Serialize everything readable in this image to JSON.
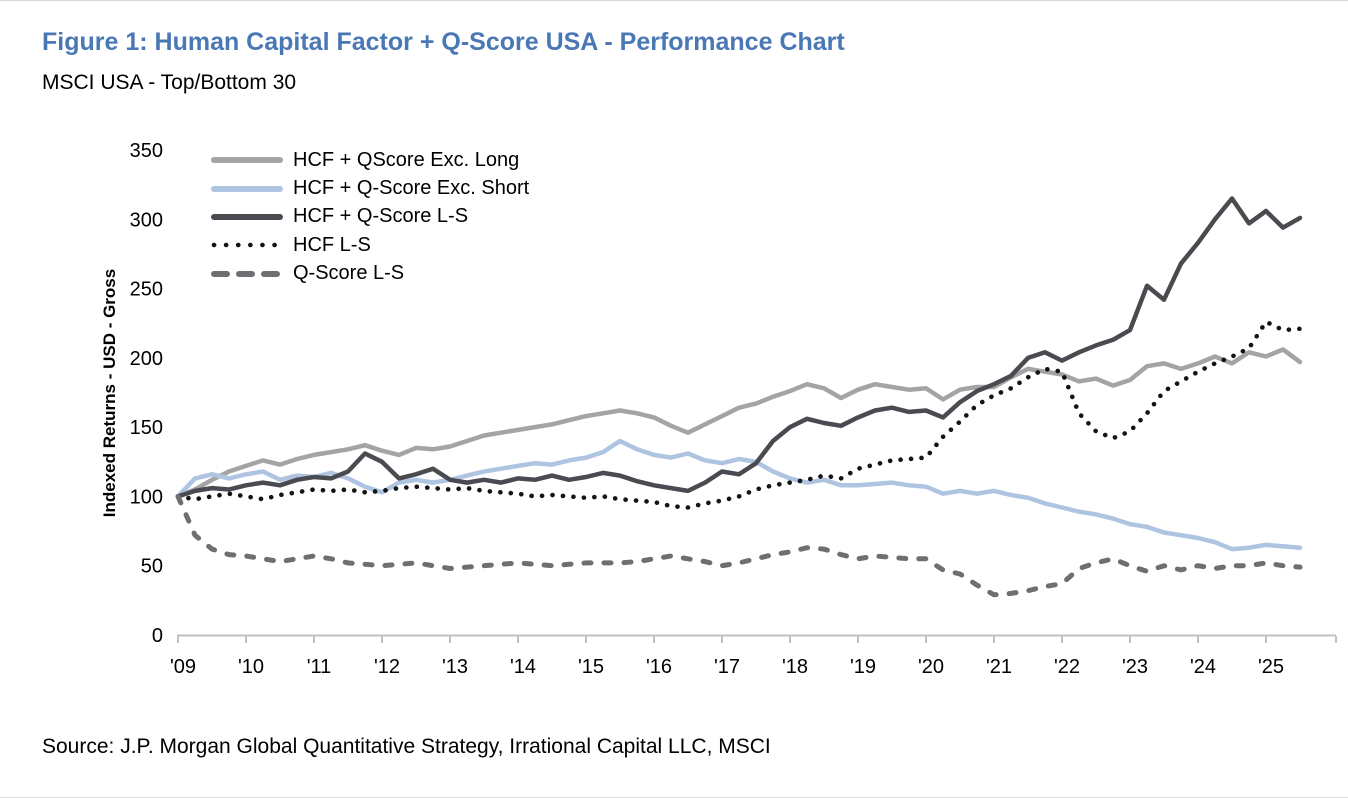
{
  "header": {
    "title": "Figure 1: Human Capital Factor + Q-Score USA - Performance Chart",
    "subtitle": "MSCI USA - Top/Bottom 30"
  },
  "footer": {
    "source": "Source: J.P. Morgan Global Quantitative Strategy, Irrational Capital LLC, MSCI"
  },
  "colors": {
    "title_blue": "#4a78b5",
    "axis_gray": "#c0c0c0"
  },
  "chart_data": {
    "type": "line",
    "title": "Figure 1: Human Capital Factor + Q-Score USA - Performance Chart",
    "subtitle": "MSCI USA - Top/Bottom 30",
    "xlabel": "",
    "ylabel": "Indexed Returns - USD - Gross",
    "ylim": [
      0,
      350
    ],
    "y_ticks": [
      0,
      50,
      100,
      150,
      200,
      250,
      300,
      350
    ],
    "x_start": 2009,
    "x_step": 0.25,
    "x_tick_labels": [
      "'09",
      "'10",
      "'11",
      "'12",
      "'13",
      "'14",
      "'15",
      "'16",
      "'17",
      "'18",
      "'19",
      "'20",
      "'21",
      "'22",
      "'23",
      "'24",
      "'25"
    ],
    "grid": false,
    "legend_position": "top-left-inside",
    "axis_color": "#c0c0c0",
    "series": [
      {
        "name": "HCF + QScore Exc. Long",
        "color": "#a4a4a4",
        "style": "solid",
        "values": [
          100,
          105,
          112,
          118,
          122,
          126,
          123,
          127,
          130,
          132,
          134,
          137,
          133,
          130,
          135,
          134,
          136,
          140,
          144,
          146,
          148,
          150,
          152,
          155,
          158,
          160,
          162,
          160,
          157,
          151,
          146,
          152,
          158,
          164,
          167,
          172,
          176,
          181,
          178,
          171,
          177,
          181,
          179,
          177,
          178,
          170,
          177,
          179,
          179,
          186,
          192,
          190,
          188,
          183,
          185,
          180,
          184,
          194,
          196,
          192,
          196,
          201,
          196,
          204,
          201,
          206,
          197
        ]
      },
      {
        "name": "HCF + Q-Score Exc. Short",
        "color": "#aec4e1",
        "style": "solid",
        "values": [
          100,
          113,
          116,
          113,
          116,
          118,
          112,
          115,
          114,
          117,
          113,
          107,
          103,
          110,
          112,
          110,
          112,
          115,
          118,
          120,
          122,
          124,
          123,
          126,
          128,
          132,
          140,
          134,
          130,
          128,
          131,
          126,
          124,
          127,
          125,
          118,
          113,
          110,
          112,
          108,
          108,
          109,
          110,
          108,
          107,
          102,
          104,
          102,
          104,
          101,
          99,
          95,
          92,
          89,
          87,
          84,
          80,
          78,
          74,
          72,
          70,
          67,
          62,
          63,
          65,
          64,
          63
        ]
      },
      {
        "name": "HCF + Q-Score L-S",
        "color": "#4a4b50",
        "style": "solid",
        "values": [
          100,
          104,
          106,
          105,
          108,
          110,
          108,
          112,
          114,
          113,
          118,
          131,
          125,
          113,
          116,
          120,
          112,
          110,
          112,
          110,
          113,
          112,
          115,
          112,
          114,
          117,
          115,
          111,
          108,
          106,
          104,
          110,
          118,
          116,
          124,
          140,
          150,
          156,
          153,
          151,
          157,
          162,
          164,
          161,
          162,
          157,
          168,
          176,
          181,
          187,
          200,
          204,
          198,
          204,
          209,
          213,
          220,
          252,
          242,
          268,
          283,
          300,
          315,
          297,
          306,
          294,
          301
        ]
      },
      {
        "name": "HCF L-S",
        "color": "#141414",
        "style": "dotted",
        "values": [
          100,
          98,
          100,
          102,
          100,
          98,
          101,
          103,
          105,
          104,
          105,
          103,
          104,
          106,
          107,
          106,
          105,
          106,
          104,
          103,
          102,
          100,
          101,
          100,
          99,
          100,
          98,
          97,
          96,
          93,
          92,
          95,
          97,
          100,
          105,
          108,
          110,
          112,
          115,
          113,
          120,
          123,
          126,
          127,
          128,
          143,
          154,
          166,
          173,
          178,
          186,
          192,
          190,
          160,
          147,
          142,
          147,
          160,
          176,
          183,
          190,
          196,
          201,
          207,
          226,
          220,
          221
        ]
      },
      {
        "name": "Q-Score L-S",
        "color": "#6e6f73",
        "style": "dashed",
        "values": [
          100,
          72,
          62,
          58,
          57,
          55,
          53,
          55,
          57,
          55,
          52,
          51,
          50,
          51,
          52,
          50,
          48,
          49,
          50,
          51,
          52,
          51,
          50,
          51,
          52,
          52,
          52,
          53,
          55,
          57,
          55,
          53,
          50,
          52,
          55,
          58,
          60,
          63,
          62,
          58,
          55,
          57,
          56,
          55,
          55,
          47,
          44,
          36,
          29,
          30,
          32,
          35,
          37,
          48,
          52,
          55,
          50,
          46,
          50,
          47,
          50,
          48,
          50,
          50,
          52,
          50,
          49
        ]
      }
    ]
  }
}
